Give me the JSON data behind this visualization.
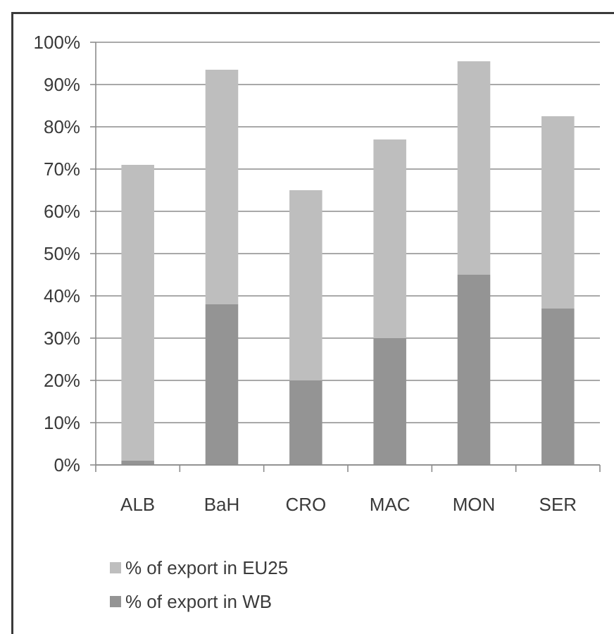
{
  "chart_data": {
    "type": "bar",
    "stacked": true,
    "categories": [
      "ALB",
      "BaH",
      "CRO",
      "MAC",
      "MON",
      "SER"
    ],
    "series": [
      {
        "name": "% of export in WB",
        "color": "#949494",
        "values": [
          1,
          38,
          20,
          30,
          45,
          37
        ]
      },
      {
        "name": "% of export in EU25",
        "color": "#bebebe",
        "values": [
          70,
          55.5,
          45,
          47,
          50.5,
          45.5
        ]
      }
    ],
    "ylim": [
      0,
      100
    ],
    "yticks": [
      {
        "value": 0,
        "label": "0%"
      },
      {
        "value": 10,
        "label": "10%"
      },
      {
        "value": 20,
        "label": "20%"
      },
      {
        "value": 30,
        "label": "30%"
      },
      {
        "value": 40,
        "label": "40%"
      },
      {
        "value": 50,
        "label": "50%"
      },
      {
        "value": 60,
        "label": "60%"
      },
      {
        "value": 70,
        "label": "70%"
      },
      {
        "value": 80,
        "label": "80%"
      },
      {
        "value": 90,
        "label": "90%"
      },
      {
        "value": 100,
        "label": "100%"
      }
    ],
    "grid": "y",
    "legend": "bottom"
  }
}
